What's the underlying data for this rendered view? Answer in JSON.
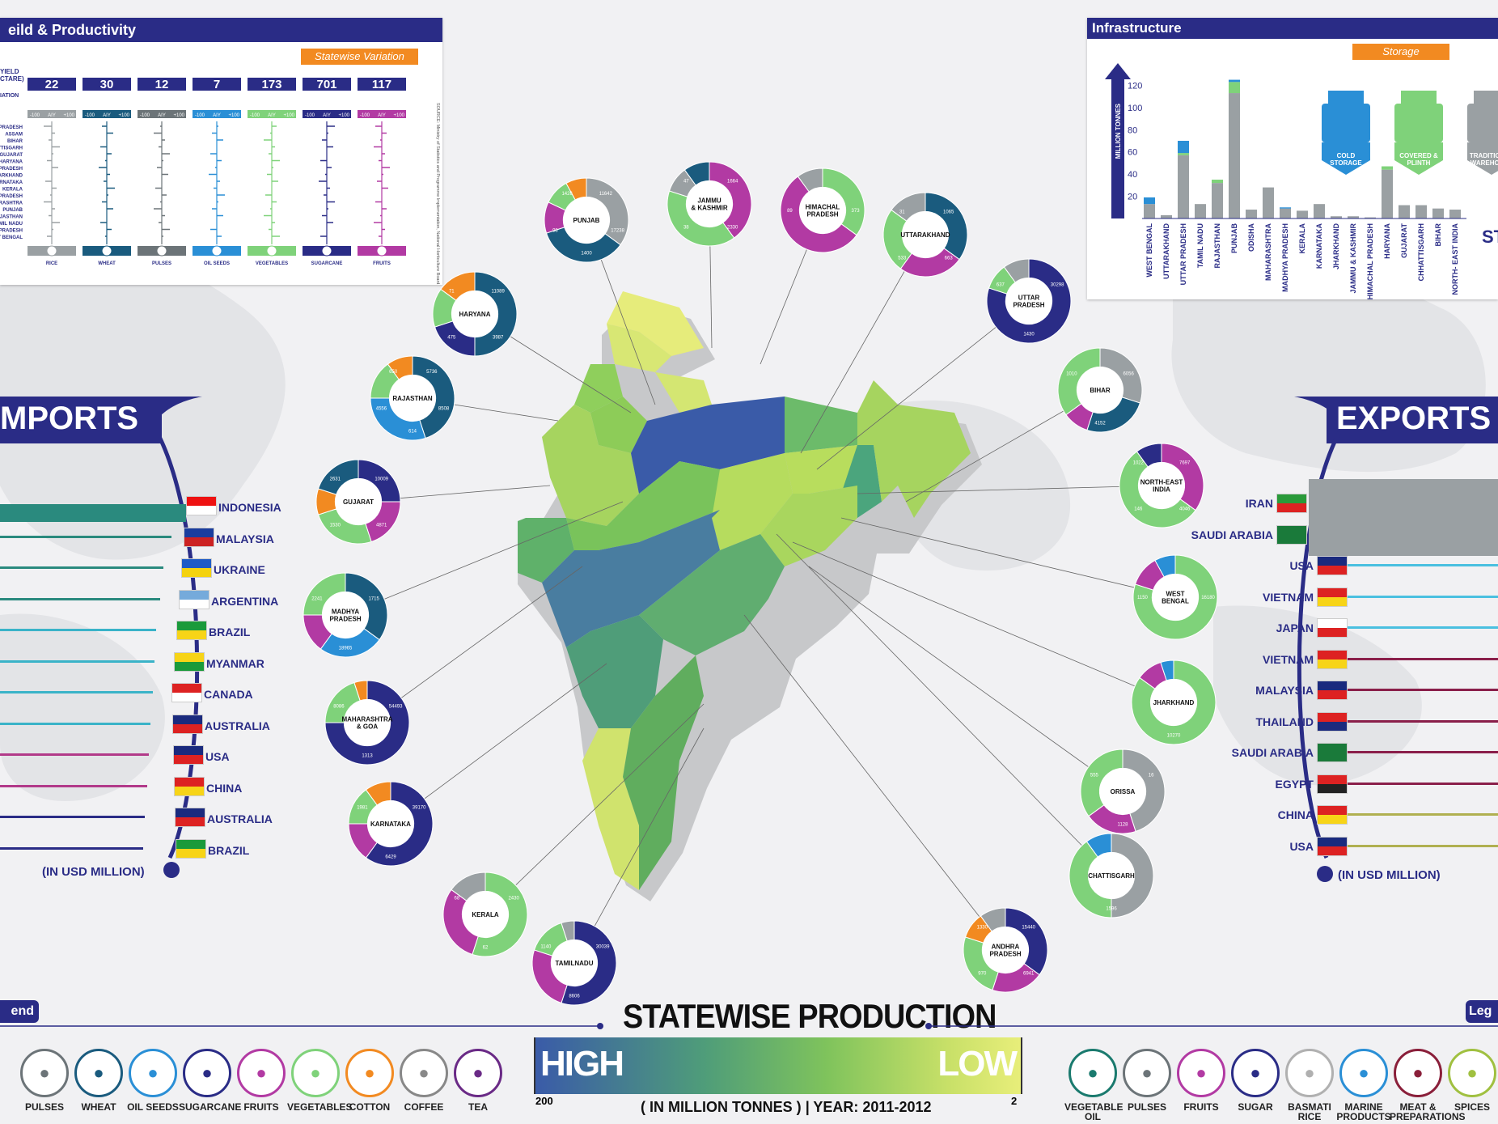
{
  "yield_panel": {
    "title": "eild & Productivity",
    "tab": "Statewise Variation",
    "row_label": "YIELD (TONNES/HECTARE)",
    "yield_label": "YIELD",
    "unit_label": "CTARE)",
    "variation_label": "IATION",
    "crops": [
      {
        "name": "RICE",
        "yield": "22",
        "color": "#9aa0a3"
      },
      {
        "name": "WHEAT",
        "yield": "30",
        "color": "#1a5b7e"
      },
      {
        "name": "PULSES",
        "yield": "12",
        "color": "#6c7478"
      },
      {
        "name": "OIL SEEDS",
        "yield": "7",
        "color": "#2a8fd6"
      },
      {
        "name": "VEGETABLES",
        "yield": "173",
        "color": "#7fd27a"
      },
      {
        "name": "SUGARCANE",
        "yield": "701",
        "color": "#2a2c86"
      },
      {
        "name": "FRUITS",
        "yield": "117",
        "color": "#b23aa3"
      }
    ],
    "scale": {
      "min": "-100",
      "mid": "AIY",
      "max": "+100"
    },
    "states": [
      "PRADESH",
      "ASSAM",
      "BIHAR",
      "ATTISGARH",
      "GUJARAT",
      "HARYANA",
      "PRADESH",
      "JHARKHAND",
      "ARNATAKA",
      "KERALA",
      "PRADESH",
      "ARASHTRA",
      "PUNJAB",
      "AJASTHAN",
      "AMIL NADU",
      "PRADESH",
      "ST BENGAL"
    ],
    "source": "SOURCE: Ministry of Statistics and Programme Implementation, National Horticulture Board, Year 2010-11"
  },
  "infrastructure": {
    "title": "Infrastructure",
    "tab": "Storage",
    "axis_label": "MILLION TONNES",
    "icons": [
      {
        "label": "COLD STORAGE",
        "color": "#2a8fd6"
      },
      {
        "label": "COVERED & PLINTH",
        "color": "#7fd27a"
      },
      {
        "label": "TRADITIONAL WAREHOUSE",
        "color": "#9aa0a3"
      }
    ],
    "side_letters": "ST"
  },
  "chart_data": [
    {
      "type": "bar",
      "title": "Infrastructure",
      "ylabel": "MILLION TONNES",
      "ylim": [
        0,
        140
      ],
      "yticks": [
        20,
        40,
        60,
        80,
        100,
        120
      ],
      "categories": [
        "WEST BENGAL",
        "UTTARAKHAND",
        "UTTAR PRADESH",
        "TAMIL NADU",
        "RAJASTHAN",
        "PUNJAB",
        "ODISHA",
        "MAHARASHTRA",
        "MADHYA PRADESH",
        "KERALA",
        "KARNATAKA",
        "JHARKHAND",
        "JAMMU & KASHMIR",
        "HIMACHAL PRADESH",
        "HARYANA",
        "GUJARAT",
        "CHHATTISGARH",
        "BIHAR",
        "NORTH- EAST INDIA"
      ],
      "series": [
        {
          "name": "COLD STORAGE",
          "values": [
            6,
            0,
            11,
            0,
            0,
            2,
            0,
            0,
            1,
            0,
            0,
            0,
            0,
            0,
            0,
            0,
            0,
            0,
            0
          ]
        },
        {
          "name": "COVERED & PLINTH",
          "values": [
            0,
            0,
            2,
            0,
            3,
            10,
            0,
            0,
            0,
            0,
            0,
            0,
            0,
            0,
            3,
            0,
            0,
            0,
            0
          ]
        },
        {
          "name": "TRADITIONAL WAREHOUSE",
          "values": [
            13,
            3,
            57,
            13,
            32,
            113,
            8,
            28,
            9,
            7,
            13,
            2,
            2,
            1,
            44,
            12,
            12,
            9,
            8
          ]
        }
      ]
    },
    {
      "type": "bar",
      "title": "IMPORTS",
      "xlabel": "(IN USD MILLION)",
      "categories": [
        "INDONESIA",
        "MALAYSIA",
        "UKRAINE",
        "ARGENTINA",
        "BRAZIL",
        "MYANMAR",
        "CANADA",
        "AUSTRALIA",
        "USA",
        "CHINA",
        "AUSTRALIA",
        "BRAZIL"
      ],
      "series": [
        {
          "values": [
            100,
            92,
            88,
            86,
            84,
            83,
            82,
            81,
            80,
            79,
            78,
            77
          ]
        }
      ]
    },
    {
      "type": "bar",
      "title": "EXPORTS",
      "xlabel": "(IN USD MILLION)",
      "categories": [
        "IRAN",
        "SAUDI ARABIA",
        "USA",
        "VIETNAM",
        "JAPAN",
        "VIETNAM",
        "MALAYSIA",
        "THAILAND",
        "SAUDI ARABIA",
        "EGYPT",
        "CHINA",
        "USA"
      ],
      "series": [
        {
          "values": [
            100,
            98,
            94,
            92,
            91,
            90,
            89,
            88,
            87,
            86,
            85,
            84
          ]
        }
      ]
    }
  ],
  "imports": {
    "title": "MPORTS",
    "unit": "(IN USD MILLION)",
    "countries": [
      "INDONESIA",
      "MALAYSIA",
      "UKRAINE",
      "ARGENTINA",
      "BRAZIL",
      "MYANMAR",
      "CANADA",
      "AUSTRALIA",
      "USA",
      "CHINA",
      "AUSTRALIA",
      "BRAZIL"
    ]
  },
  "exports": {
    "title": "EXPORTS",
    "unit": "(IN USD MILLION)",
    "countries": [
      "IRAN",
      "SAUDI ARABIA",
      "USA",
      "VIETNAM",
      "JAPAN",
      "VIETNAM",
      "MALAYSIA",
      "THAILAND",
      "SAUDI ARABIA",
      "EGYPT",
      "CHINA",
      "USA"
    ]
  },
  "states": [
    {
      "name": "PUNJAB",
      "vals": [
        "11642",
        "17238",
        "1400",
        "98",
        "1426"
      ]
    },
    {
      "name": "JAMMU & KASHMIR",
      "vals": [
        "1664",
        "2330",
        "38",
        "47"
      ]
    },
    {
      "name": "HIMACHAL PRADESH",
      "vals": [
        "373",
        "89"
      ]
    },
    {
      "name": "UTTARAKHAND",
      "vals": [
        "1065",
        "663",
        "533",
        "31"
      ]
    },
    {
      "name": "UTTAR PRADESH",
      "vals": [
        "30298",
        "1430",
        "637"
      ]
    },
    {
      "name": "HARYANA",
      "vals": [
        "11089",
        "3987",
        "475",
        "71"
      ]
    },
    {
      "name": "RAJASTHAN",
      "vals": [
        "5736",
        "8508",
        "614",
        "4556",
        "650"
      ]
    },
    {
      "name": "GUJARAT",
      "vals": [
        "10009",
        "4871",
        "1530",
        "2631"
      ]
    },
    {
      "name": "BIHAR",
      "vals": [
        "6056",
        "4152",
        "1010"
      ]
    },
    {
      "name": "NORTH-EAST INDIA",
      "vals": [
        "7697",
        "4046",
        "146",
        "1022"
      ]
    },
    {
      "name": "MADHYA PRADESH",
      "vals": [
        "1715",
        "18965",
        "2241"
      ]
    },
    {
      "name": "WEST BENGAL",
      "vals": [
        "16180",
        "1150"
      ]
    },
    {
      "name": "MAHARASHTRA & GOA",
      "vals": [
        "54493",
        "1313",
        "8086"
      ]
    },
    {
      "name": "JHARKHAND",
      "vals": [
        "10270"
      ]
    },
    {
      "name": "KARNATAKA",
      "vals": [
        "39170",
        "6429",
        "1981"
      ]
    },
    {
      "name": "ORISSA",
      "vals": [
        "16",
        "1128",
        "555"
      ]
    },
    {
      "name": "KERALA",
      "vals": [
        "2430",
        "62",
        "68"
      ]
    },
    {
      "name": "CHATTISGARH",
      "vals": [
        "1596"
      ]
    },
    {
      "name": "TAMILNADU",
      "vals": [
        "30039",
        "8606",
        "1140"
      ]
    },
    {
      "name": "ANDHRA PRADESH",
      "vals": [
        "15440",
        "6941",
        "970",
        "1330"
      ]
    }
  ],
  "production": {
    "title": "STATEWISE PRODUCTION",
    "high": "HIGH",
    "low": "LOW",
    "max": "200",
    "min": "2",
    "unit": "( IN MILLION TONNES )",
    "year": "| YEAR: 2011-2012"
  },
  "legend_left": {
    "title": "end",
    "items": [
      "PULSES",
      "WHEAT",
      "OIL SEEDS",
      "SUGARCANE",
      "FRUITS",
      "VEGETABLES",
      "COTTON",
      "COFFEE",
      "TEA"
    ],
    "colors": [
      "#6c7478",
      "#1a5b7e",
      "#2a8fd6",
      "#2a2c86",
      "#b23aa3",
      "#7fd27a",
      "#f28a21",
      "#888888",
      "#6a2a86"
    ]
  },
  "legend_right": {
    "title": "Leg",
    "items": [
      "VEGETABLE OIL",
      "PULSES",
      "FRUITS",
      "SUGAR",
      "BASMATI RICE",
      "MARINE PRODUCTS",
      "MEAT & PREPARATIONS",
      "SPICES"
    ],
    "colors": [
      "#1a7a6e",
      "#6c7478",
      "#b23aa3",
      "#2a2c86",
      "#b0b0b0",
      "#2a8fd6",
      "#8a1f3a",
      "#a0c040"
    ]
  }
}
